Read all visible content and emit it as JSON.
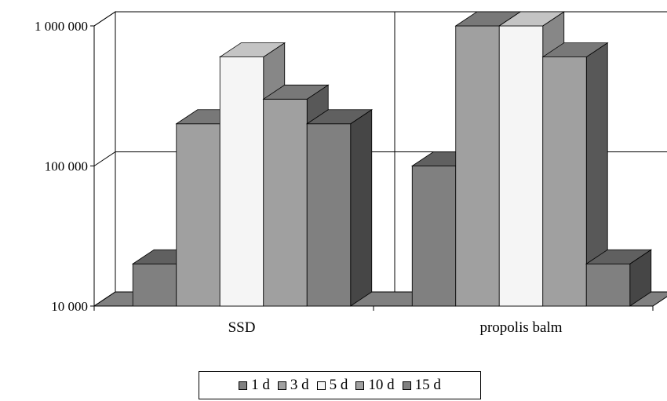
{
  "chart_data": {
    "type": "bar",
    "style": "3d-clustered-column",
    "categories": [
      "SSD",
      "propolis balm"
    ],
    "series": [
      {
        "name": "1 d",
        "values": [
          20000,
          100000
        ],
        "color": "#808080"
      },
      {
        "name": "3 d",
        "values": [
          200000,
          1000000
        ],
        "color": "#A0A0A0"
      },
      {
        "name": "5 d",
        "values": [
          600000,
          1000000
        ],
        "color": "#F5F5F5"
      },
      {
        "name": "10 d",
        "values": [
          300000,
          600000
        ],
        "color": "#A0A0A0"
      },
      {
        "name": "15 d",
        "values": [
          200000,
          20000
        ],
        "color": "#808080"
      }
    ],
    "yscale": "log",
    "ylim": [
      10000,
      1000000
    ],
    "yticks": [
      10000,
      100000,
      1000000
    ],
    "ytick_labels": [
      "10 000",
      "100 000",
      "1 000 000"
    ],
    "grid": true,
    "legend_position": "bottom"
  }
}
